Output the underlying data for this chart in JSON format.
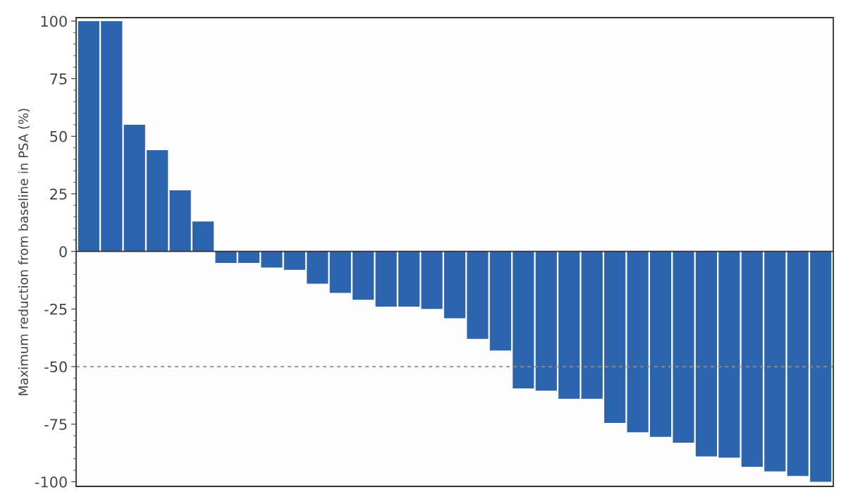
{
  "chart_data": {
    "type": "bar",
    "ylabel": "Maximum reduction from baseline in PSA (%)",
    "categories": [
      null,
      null,
      null,
      null,
      null,
      null,
      null,
      null,
      null,
      null,
      null,
      null,
      null,
      null,
      null,
      null,
      null,
      null,
      null,
      null,
      null,
      null,
      null,
      null,
      null,
      null,
      null,
      null,
      null,
      null,
      null,
      null,
      null
    ],
    "values": [
      100,
      100,
      55,
      44,
      26.5,
      13,
      -5,
      -5,
      -7,
      -8,
      -14,
      -18,
      -21,
      -24,
      -24,
      -25,
      -29,
      -38,
      -43,
      -59.5,
      -60.5,
      -64,
      -64,
      -74.5,
      -78.5,
      -80.5,
      -83,
      -89,
      -89.5,
      -93.5,
      -95.5,
      -97.5,
      -100
    ],
    "color": "#2c65ad",
    "ylim": [
      -102,
      101.5
    ],
    "yticks": [
      -100,
      -75,
      -50,
      -25,
      0,
      25,
      50,
      75,
      100
    ],
    "ref_lines": [
      {
        "axis": "y",
        "value": -50,
        "color": "#8c8c8c",
        "line_style": "dashed"
      }
    ],
    "tick_labels": "y",
    "grid": false,
    "legend": false
  }
}
